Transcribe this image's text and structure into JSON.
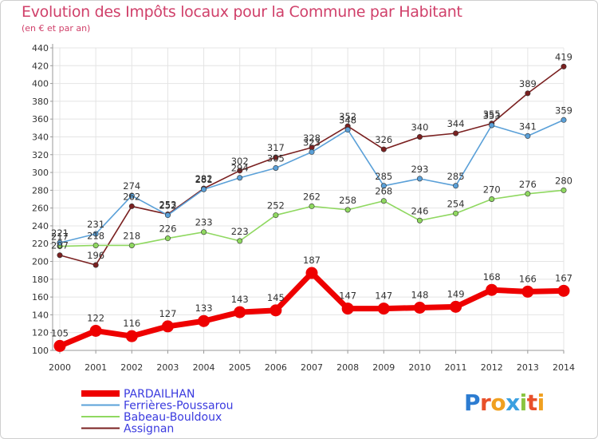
{
  "title": "Evolution des Impôts locaux pour la Commune par Habitant",
  "subtitle": "(en € et par an)",
  "logo": "Proxiti",
  "chart_data": {
    "type": "line",
    "x": [
      2000,
      2001,
      2002,
      2003,
      2004,
      2005,
      2006,
      2007,
      2008,
      2009,
      2010,
      2011,
      2012,
      2013,
      2014
    ],
    "ylim": [
      100,
      440
    ],
    "yticks": [
      100,
      120,
      140,
      160,
      180,
      200,
      220,
      240,
      260,
      280,
      300,
      320,
      340,
      360,
      380,
      400,
      420,
      440
    ],
    "grid": true,
    "legend_position": "bottom-left",
    "series": [
      {
        "name": "PARDAILHAN",
        "color": "#ee0000",
        "values": [
          105,
          122,
          116,
          127,
          133,
          143,
          145,
          187,
          147,
          147,
          148,
          149,
          168,
          166,
          167
        ]
      },
      {
        "name": "Ferrières-Poussarou",
        "color": "#5aa0d8",
        "values": [
          221,
          231,
          274,
          252,
          281,
          294,
          305,
          323,
          348,
          285,
          293,
          285,
          353,
          341,
          359
        ]
      },
      {
        "name": "Babeau-Bouldoux",
        "color": "#8fd860",
        "values": [
          217,
          218,
          218,
          226,
          233,
          223,
          252,
          262,
          258,
          268,
          246,
          254,
          270,
          276,
          280
        ]
      },
      {
        "name": "Assignan",
        "color": "#7a2020",
        "values": [
          207,
          196,
          262,
          253,
          282,
          302,
          317,
          328,
          352,
          326,
          340,
          344,
          355,
          389,
          419
        ]
      }
    ]
  }
}
